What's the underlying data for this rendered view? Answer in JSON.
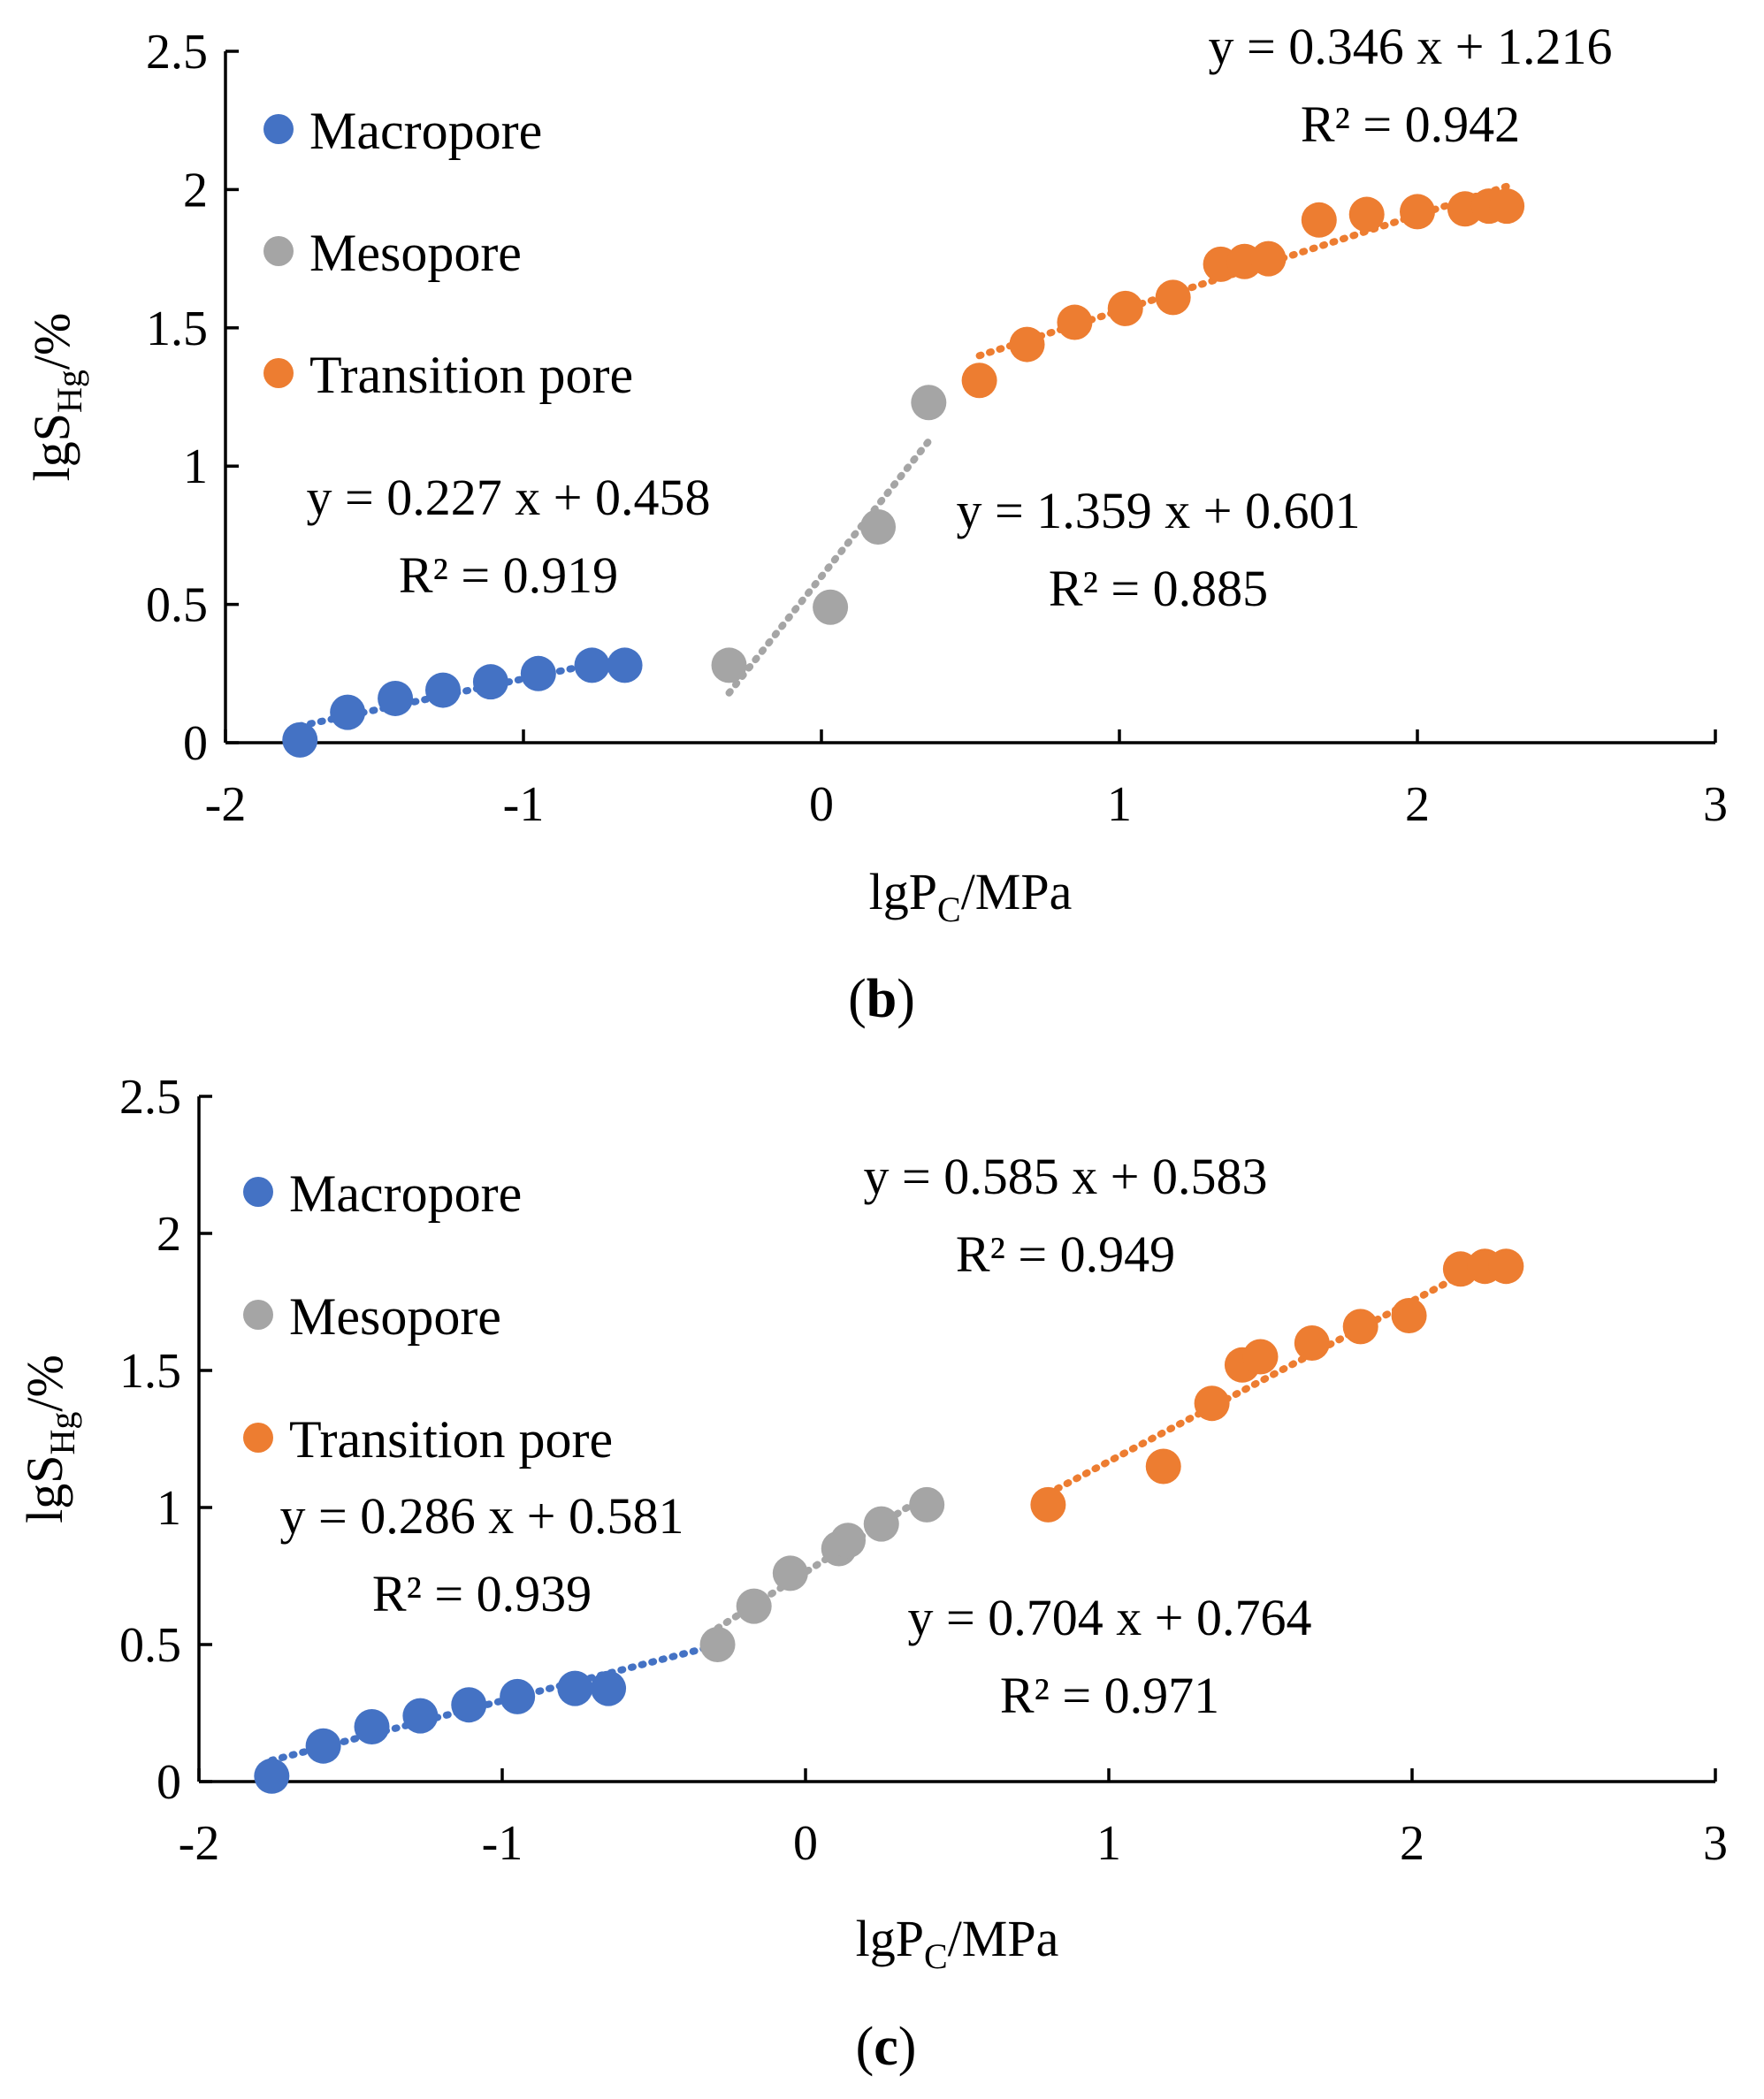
{
  "chart_data": [
    {
      "type": "scatter",
      "caption": "b",
      "xlabel": {
        "base": "lgP",
        "sub": "C",
        "rest": "/MPa"
      },
      "ylabel": {
        "base": "lgS",
        "sub": "Hg",
        "rest": "/%"
      },
      "xlim": [
        -2,
        3
      ],
      "ylim": [
        0,
        2.5
      ],
      "x_ticks": [
        "-2",
        "-1",
        "0",
        "1",
        "2",
        "3"
      ],
      "y_ticks": [
        "0",
        "0.5",
        "1",
        "1.5",
        "2",
        "2.5"
      ],
      "legend": [
        "Macropore",
        "Mesopore",
        "Transition pore"
      ],
      "series": [
        {
          "name": "Macropore",
          "color": "#4472c4",
          "x": [
            -1.75,
            -1.59,
            -1.43,
            -1.27,
            -1.11,
            -0.95,
            -0.77,
            -0.66
          ],
          "y": [
            0.01,
            0.11,
            0.16,
            0.19,
            0.22,
            0.25,
            0.28,
            0.28
          ],
          "equation": "y = 0.227 x + 0.458",
          "r2": "R² = 0.919",
          "trend": [
            -1.75,
            -0.66
          ]
        },
        {
          "name": "Mesopore",
          "color": "#a5a5a5",
          "x": [
            -0.31,
            0.03,
            0.19,
            0.36
          ],
          "y": [
            0.28,
            0.49,
            0.78,
            1.23
          ],
          "equation": "y = 1.359 x + 0.601",
          "r2": "R² = 0.885",
          "trend": [
            -0.31,
            0.36
          ]
        },
        {
          "name": "Transition pore",
          "color": "#ed7d31",
          "x": [
            0.53,
            0.69,
            0.85,
            1.02,
            1.18,
            1.34,
            1.42,
            1.5,
            1.67,
            1.83,
            2.0,
            2.16,
            2.24,
            2.3
          ],
          "y": [
            1.31,
            1.44,
            1.52,
            1.57,
            1.61,
            1.73,
            1.74,
            1.75,
            1.89,
            1.91,
            1.92,
            1.93,
            1.94,
            1.94
          ],
          "equation": "y = 0.346 x + 1.216",
          "r2": "R² = 0.942",
          "trend": [
            0.53,
            2.3
          ]
        }
      ]
    },
    {
      "type": "scatter",
      "caption": "c",
      "xlabel": {
        "base": "lgP",
        "sub": "C",
        "rest": "/MPa"
      },
      "ylabel": {
        "base": "lgS",
        "sub": "Hg",
        "rest": "/%"
      },
      "xlim": [
        -2,
        3
      ],
      "ylim": [
        0,
        2.5
      ],
      "x_ticks": [
        "-2",
        "-1",
        "0",
        "1",
        "2",
        "3"
      ],
      "y_ticks": [
        "0",
        "0.5",
        "1",
        "1.5",
        "2",
        "2.5"
      ],
      "legend": [
        "Macropore",
        "Mesopore",
        "Transition pore"
      ],
      "series": [
        {
          "name": "Macropore",
          "color": "#4472c4",
          "x": [
            -1.76,
            -1.59,
            -1.43,
            -1.27,
            -1.11,
            -0.95,
            -0.76,
            -0.65
          ],
          "y": [
            0.02,
            0.13,
            0.2,
            0.24,
            0.28,
            0.31,
            0.34,
            0.34
          ],
          "equation": "y = 0.286 x + 0.581",
          "r2": "R² = 0.939",
          "trend": [
            -1.76,
            -0.33
          ]
        },
        {
          "name": "Mesopore",
          "color": "#a5a5a5",
          "x": [
            -0.29,
            -0.17,
            -0.05,
            0.11,
            0.14,
            0.25,
            0.4
          ],
          "y": [
            0.5,
            0.64,
            0.76,
            0.85,
            0.88,
            0.94,
            1.01
          ],
          "equation": "y = 0.704 x + 0.764",
          "r2": "R² = 0.971",
          "trend": [
            -0.29,
            0.4
          ]
        },
        {
          "name": "Transition pore",
          "color": "#ed7d31",
          "x": [
            0.8,
            1.18,
            1.34,
            1.44,
            1.5,
            1.67,
            1.83,
            1.99,
            2.16,
            2.24,
            2.31
          ],
          "y": [
            1.01,
            1.15,
            1.38,
            1.52,
            1.55,
            1.6,
            1.66,
            1.7,
            1.87,
            1.88,
            1.88
          ],
          "equation": "y = 0.585 x + 0.583",
          "r2": "R² = 0.949",
          "trend": [
            0.8,
            2.31
          ]
        }
      ]
    }
  ]
}
